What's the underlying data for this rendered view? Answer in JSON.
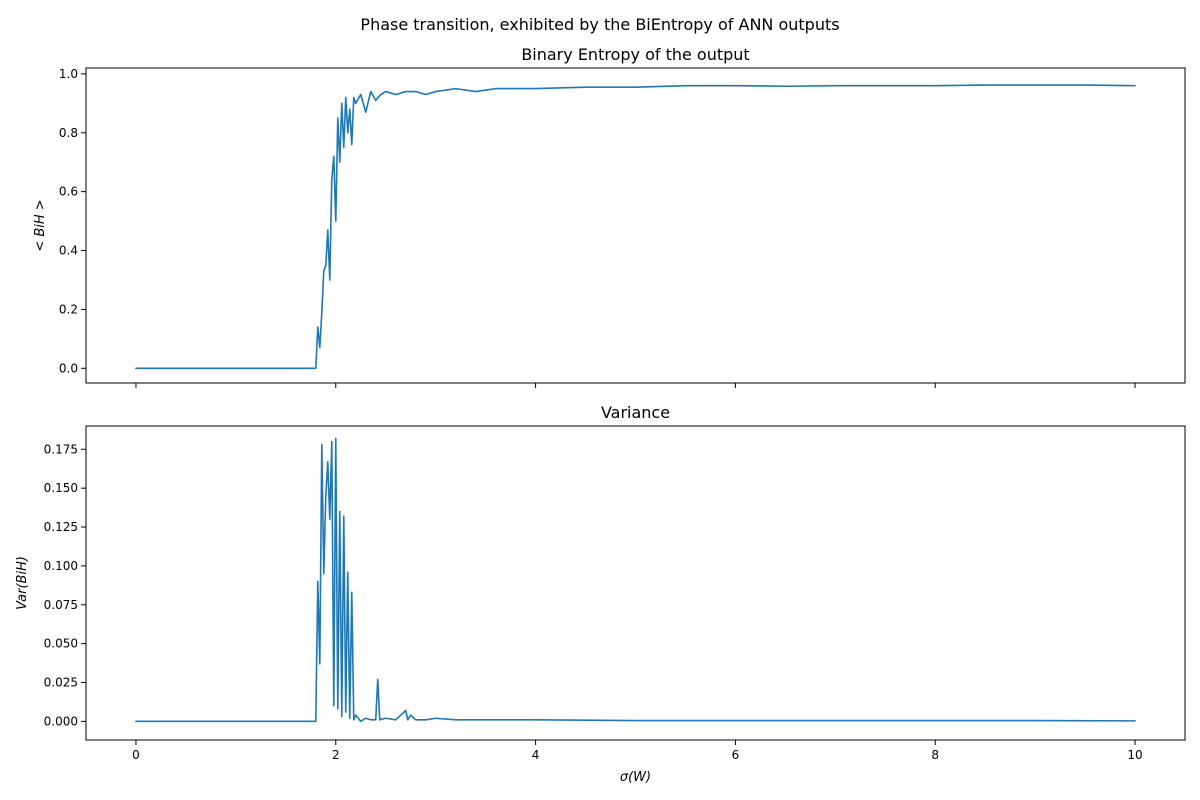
{
  "figure": {
    "suptitle": "Phase transition, exhibited by the BiEntropy of ANN outputs",
    "line_color": "#1f77b4"
  },
  "chart_data": [
    {
      "type": "line",
      "title": "Binary Entropy of the output",
      "xlabel": "",
      "ylabel": "< BiH >",
      "xlim": [
        -0.5,
        10.5
      ],
      "ylim": [
        -0.05,
        1.02
      ],
      "xticks": [
        0,
        2,
        4,
        6,
        8,
        10
      ],
      "xtick_labels_visible": false,
      "yticks": [
        0.0,
        0.2,
        0.4,
        0.6,
        0.8,
        1.0
      ],
      "ytick_labels": [
        "0.0",
        "0.2",
        "0.4",
        "0.6",
        "0.8",
        "1.0"
      ],
      "grid": false,
      "series": [
        {
          "x": [
            0,
            1.8,
            1.82,
            1.84,
            1.86,
            1.88,
            1.9,
            1.92,
            1.94,
            1.96,
            1.98,
            2.0,
            2.02,
            2.04,
            2.06,
            2.08,
            2.1,
            2.12,
            2.14,
            2.16,
            2.18,
            2.2,
            2.25,
            2.3,
            2.35,
            2.4,
            2.45,
            2.5,
            2.6,
            2.7,
            2.8,
            2.9,
            3.0,
            3.2,
            3.4,
            3.6,
            3.8,
            4.0,
            4.5,
            5.0,
            5.5,
            6.0,
            6.5,
            7.0,
            7.5,
            8.0,
            8.5,
            9.0,
            9.5,
            10.0
          ],
          "y": [
            0.0,
            0.0,
            0.14,
            0.07,
            0.19,
            0.33,
            0.35,
            0.47,
            0.3,
            0.64,
            0.72,
            0.5,
            0.85,
            0.7,
            0.9,
            0.75,
            0.92,
            0.8,
            0.88,
            0.76,
            0.92,
            0.9,
            0.93,
            0.87,
            0.94,
            0.91,
            0.93,
            0.94,
            0.93,
            0.94,
            0.94,
            0.93,
            0.94,
            0.95,
            0.94,
            0.95,
            0.95,
            0.95,
            0.955,
            0.955,
            0.96,
            0.96,
            0.958,
            0.96,
            0.96,
            0.96,
            0.962,
            0.962,
            0.962,
            0.96
          ]
        }
      ]
    },
    {
      "type": "line",
      "title": "Variance",
      "xlabel": "σ(W)",
      "ylabel": "Var(BiH)",
      "xlim": [
        -0.5,
        10.5
      ],
      "ylim": [
        -0.012,
        0.19
      ],
      "xticks": [
        0,
        2,
        4,
        6,
        8,
        10
      ],
      "xtick_labels": [
        "0",
        "2",
        "4",
        "6",
        "8",
        "10"
      ],
      "yticks": [
        0.0,
        0.025,
        0.05,
        0.075,
        0.1,
        0.125,
        0.15,
        0.175
      ],
      "ytick_labels": [
        "0.000",
        "0.025",
        "0.050",
        "0.075",
        "0.100",
        "0.125",
        "0.150",
        "0.175"
      ],
      "grid": false,
      "series": [
        {
          "x": [
            0,
            1.8,
            1.82,
            1.84,
            1.86,
            1.88,
            1.9,
            1.92,
            1.94,
            1.96,
            1.98,
            2.0,
            2.02,
            2.04,
            2.06,
            2.08,
            2.1,
            2.12,
            2.14,
            2.16,
            2.18,
            2.2,
            2.25,
            2.3,
            2.35,
            2.4,
            2.42,
            2.44,
            2.5,
            2.6,
            2.7,
            2.72,
            2.75,
            2.8,
            2.9,
            3.0,
            3.2,
            3.4,
            3.6,
            4.0,
            5.0,
            6.0,
            7.0,
            8.0,
            9.0,
            10.0
          ],
          "y": [
            0.0,
            0.0,
            0.09,
            0.037,
            0.178,
            0.095,
            0.145,
            0.167,
            0.13,
            0.18,
            0.01,
            0.182,
            0.008,
            0.135,
            0.003,
            0.132,
            0.006,
            0.096,
            0.002,
            0.083,
            0.001,
            0.004,
            0.0,
            0.002,
            0.001,
            0.001,
            0.027,
            0.001,
            0.002,
            0.001,
            0.007,
            0.001,
            0.004,
            0.001,
            0.001,
            0.002,
            0.001,
            0.001,
            0.001,
            0.001,
            0.0005,
            0.0005,
            0.0005,
            0.0005,
            0.0005,
            0.0003
          ]
        }
      ]
    }
  ]
}
